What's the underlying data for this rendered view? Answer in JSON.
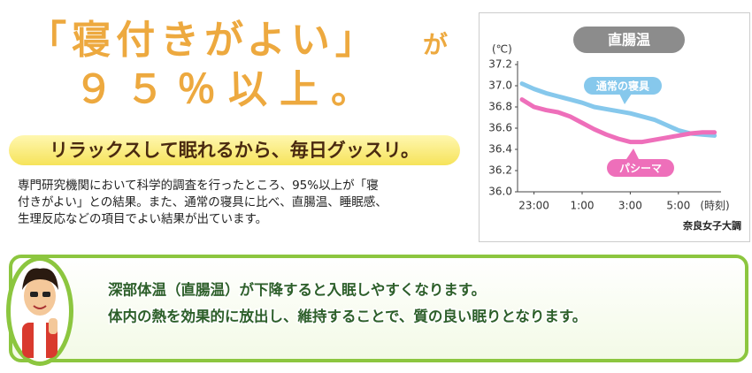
{
  "headline": {
    "line1": "「寝付きがよい」",
    "particle": "が",
    "line2": "９５％以上。"
  },
  "subheadline": "リラックスして眠れるから、毎日グッスリ。",
  "body": [
    "専門研究機関において科学的調査を行ったところ、95%以上が「寝",
    "付きがよい」との結果。また、通常の寝具に比べ、直腸温、睡眠感、",
    "生理反応などの項目でよい結果が出ています。"
  ],
  "note": [
    "深部体温（直腸温）が下降すると入眠しやすくなります。",
    "体内の熱を効果的に放出し、維持することで、質の良い眠りとなります。"
  ],
  "chart_data": {
    "type": "line",
    "title": "直腸温",
    "y_unit": "(℃)",
    "x_label": "(時刻)",
    "source": "奈良女子大調",
    "categories": [
      null,
      "23:00",
      null,
      null,
      null,
      "1:00",
      null,
      null,
      null,
      "3:00",
      null,
      null,
      null,
      "5:00",
      null,
      null,
      null
    ],
    "series": [
      {
        "name": "通常の寝具",
        "color": "#86c8ec",
        "values": [
          37.02,
          36.97,
          36.93,
          36.9,
          36.87,
          36.84,
          36.8,
          36.78,
          36.76,
          36.74,
          36.71,
          36.68,
          36.63,
          36.58,
          36.55,
          36.54,
          36.53
        ]
      },
      {
        "name": "パシーマ",
        "color": "#ee6fba",
        "values": [
          36.87,
          36.8,
          36.77,
          36.75,
          36.71,
          36.65,
          36.59,
          36.54,
          36.5,
          36.47,
          36.47,
          36.49,
          36.51,
          36.53,
          36.55,
          36.56,
          36.56
        ]
      }
    ],
    "ylim": [
      36.0,
      37.2
    ],
    "yticks": [
      {
        "value": 36,
        "label": "36.0"
      },
      36.2,
      36.4,
      36.6,
      36.8,
      {
        "value": 37,
        "label": "37.0"
      },
      37.2
    ]
  }
}
